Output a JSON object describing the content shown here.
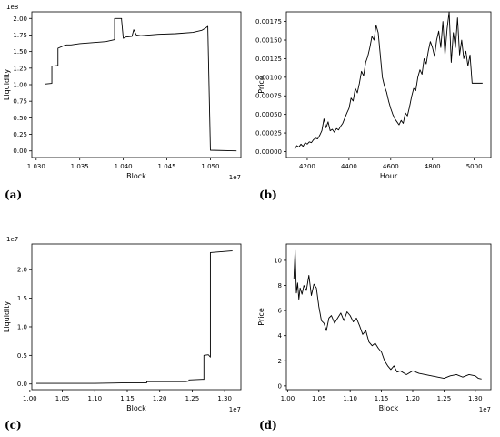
{
  "panels": {
    "a": "(a)",
    "b": "(b)",
    "c": "(c)",
    "d": "(d)"
  },
  "chart_data": [
    {
      "id": "a",
      "type": "line",
      "xlabel": "Block",
      "ylabel": "Liquidity",
      "x_offset_label": "1e7",
      "y_offset_label": "1e8",
      "xlim": [
        1.0295,
        1.0535
      ],
      "ylim": [
        -0.1,
        2.1
      ],
      "x_ticks": [
        1.03,
        1.035,
        1.04,
        1.045,
        1.05
      ],
      "x_tick_labels": [
        "1.030",
        "1.035",
        "1.040",
        "1.045",
        "1.050"
      ],
      "y_ticks": [
        0.0,
        0.25,
        0.5,
        0.75,
        1.0,
        1.25,
        1.5,
        1.75,
        2.0
      ],
      "y_tick_labels": [
        "0.00",
        "0.25",
        "0.50",
        "0.75",
        "1.00",
        "1.25",
        "1.50",
        "1.75",
        "2.00"
      ],
      "series": [
        {
          "x": [
            1.031,
            1.0318,
            1.0318,
            1.0325,
            1.0325,
            1.0332,
            1.0335,
            1.034,
            1.035,
            1.036,
            1.038,
            1.039,
            1.039,
            1.0398,
            1.0398,
            1.04,
            1.0403,
            1.041,
            1.0412,
            1.0415,
            1.042,
            1.044,
            1.046,
            1.048,
            1.049,
            1.0495,
            1.0497,
            1.05,
            1.053
          ],
          "y": [
            1.01,
            1.02,
            1.28,
            1.29,
            1.55,
            1.59,
            1.6,
            1.6,
            1.62,
            1.63,
            1.65,
            1.68,
            2.0,
            2.0,
            1.98,
            1.7,
            1.72,
            1.73,
            1.83,
            1.75,
            1.74,
            1.76,
            1.77,
            1.79,
            1.82,
            1.86,
            1.88,
            0.01,
            0.0
          ]
        }
      ]
    },
    {
      "id": "b",
      "type": "line",
      "xlabel": "Hour",
      "ylabel": "Price",
      "xlim": [
        4100,
        5080
      ],
      "ylim": [
        -8e-05,
        0.00188
      ],
      "x_ticks": [
        4200,
        4400,
        4600,
        4800,
        5000
      ],
      "x_tick_labels": [
        "4200",
        "4400",
        "4600",
        "4800",
        "5000"
      ],
      "y_ticks": [
        0.0,
        0.00025,
        0.0005,
        0.00075,
        0.001,
        0.00125,
        0.0015,
        0.00175
      ],
      "y_tick_labels": [
        "0.00000",
        "0.00025",
        "0.00050",
        "0.00075",
        "0.00100",
        "0.00125",
        "0.00150",
        "0.00175"
      ],
      "series": [
        {
          "x": [
            4140,
            4150,
            4160,
            4170,
            4180,
            4190,
            4200,
            4210,
            4220,
            4230,
            4240,
            4250,
            4260,
            4270,
            4280,
            4290,
            4300,
            4310,
            4320,
            4330,
            4340,
            4350,
            4360,
            4370,
            4380,
            4390,
            4400,
            4410,
            4420,
            4430,
            4440,
            4450,
            4460,
            4470,
            4480,
            4490,
            4500,
            4510,
            4520,
            4530,
            4540,
            4550,
            4560,
            4570,
            4580,
            4590,
            4600,
            4610,
            4620,
            4630,
            4640,
            4650,
            4660,
            4670,
            4680,
            4690,
            4700,
            4710,
            4720,
            4730,
            4740,
            4750,
            4760,
            4770,
            4780,
            4790,
            4800,
            4810,
            4820,
            4830,
            4840,
            4850,
            4860,
            4870,
            4880,
            4890,
            4900,
            4910,
            4920,
            4930,
            4940,
            4950,
            4960,
            4970,
            4980,
            4990,
            5000,
            5010,
            5020,
            5030,
            5040
          ],
          "y": [
            3e-05,
            8e-05,
            6e-05,
            0.0001,
            7e-05,
            0.00012,
            0.0001,
            0.00013,
            0.00012,
            0.00016,
            0.00018,
            0.00017,
            0.00022,
            0.00028,
            0.00044,
            0.00032,
            0.0004,
            0.00028,
            0.0003,
            0.00026,
            0.00031,
            0.00029,
            0.00034,
            0.00038,
            0.00045,
            0.00052,
            0.00058,
            0.00072,
            0.00068,
            0.00085,
            0.00079,
            0.00092,
            0.00108,
            0.00102,
            0.0012,
            0.00128,
            0.0014,
            0.00155,
            0.0015,
            0.0017,
            0.0016,
            0.0013,
            0.001,
            0.00088,
            0.0008,
            0.00068,
            0.00058,
            0.0005,
            0.00044,
            0.0004,
            0.00036,
            0.00042,
            0.00038,
            0.00052,
            0.00048,
            0.0006,
            0.00074,
            0.00085,
            0.00082,
            0.001,
            0.0011,
            0.00104,
            0.00125,
            0.00118,
            0.00135,
            0.00148,
            0.0014,
            0.00128,
            0.0015,
            0.00162,
            0.0014,
            0.00175,
            0.0013,
            0.00165,
            0.00188,
            0.0012,
            0.0016,
            0.0014,
            0.0018,
            0.0013,
            0.0015,
            0.00125,
            0.00135,
            0.00115,
            0.0013,
            0.00092,
            0.00092,
            0.00092,
            0.00092,
            0.00092,
            0.00092
          ]
        }
      ]
    },
    {
      "id": "c",
      "type": "line",
      "xlabel": "Block",
      "ylabel": "Liquidity",
      "x_offset_label": "1e7",
      "y_offset_label": "1e7",
      "xlim": [
        1.003,
        1.325
      ],
      "ylim": [
        -0.1,
        2.45
      ],
      "x_ticks": [
        1.0,
        1.05,
        1.1,
        1.15,
        1.2,
        1.25,
        1.3
      ],
      "x_tick_labels": [
        "1.00",
        "1.05",
        "1.10",
        "1.15",
        "1.20",
        "1.25",
        "1.30"
      ],
      "y_ticks": [
        0.0,
        0.5,
        1.0,
        1.5,
        2.0
      ],
      "y_tick_labels": [
        "0.0",
        "0.5",
        "1.0",
        "1.5",
        "2.0"
      ],
      "series": [
        {
          "x": [
            1.01,
            1.05,
            1.1,
            1.15,
            1.18,
            1.18,
            1.2,
            1.24,
            1.245,
            1.245,
            1.265,
            1.268,
            1.268,
            1.275,
            1.278,
            1.278,
            1.3,
            1.312
          ],
          "y": [
            0.01,
            0.01,
            0.01,
            0.02,
            0.02,
            0.04,
            0.04,
            0.04,
            0.05,
            0.07,
            0.08,
            0.08,
            0.5,
            0.51,
            0.47,
            2.3,
            2.32,
            2.33
          ]
        }
      ]
    },
    {
      "id": "d",
      "type": "line",
      "xlabel": "Block",
      "ylabel": "Price",
      "x_offset_label": "1e7",
      "xlim": [
        0.998,
        1.325
      ],
      "ylim": [
        -0.3,
        11.3
      ],
      "x_ticks": [
        1.0,
        1.05,
        1.1,
        1.15,
        1.2,
        1.25,
        1.3
      ],
      "x_tick_labels": [
        "1.00",
        "1.05",
        "1.10",
        "1.15",
        "1.20",
        "1.25",
        "1.30"
      ],
      "y_ticks": [
        0,
        2,
        4,
        6,
        8,
        10
      ],
      "y_tick_labels": [
        "0",
        "2",
        "4",
        "6",
        "8",
        "10"
      ],
      "series": [
        {
          "x": [
            1.01,
            1.012,
            1.014,
            1.016,
            1.018,
            1.02,
            1.023,
            1.026,
            1.03,
            1.034,
            1.038,
            1.042,
            1.046,
            1.05,
            1.054,
            1.058,
            1.062,
            1.066,
            1.07,
            1.075,
            1.08,
            1.085,
            1.09,
            1.095,
            1.1,
            1.105,
            1.11,
            1.115,
            1.12,
            1.125,
            1.13,
            1.135,
            1.14,
            1.145,
            1.15,
            1.155,
            1.16,
            1.165,
            1.17,
            1.175,
            1.18,
            1.19,
            1.2,
            1.21,
            1.22,
            1.23,
            1.24,
            1.25,
            1.26,
            1.27,
            1.28,
            1.29,
            1.3,
            1.305,
            1.31
          ],
          "y": [
            8.5,
            10.8,
            7.4,
            8.2,
            6.9,
            7.8,
            7.3,
            8.0,
            7.6,
            8.8,
            7.2,
            8.1,
            7.8,
            6.3,
            5.2,
            5.0,
            4.4,
            5.4,
            5.6,
            5.0,
            5.4,
            5.8,
            5.2,
            5.9,
            5.6,
            5.1,
            5.4,
            4.8,
            4.1,
            4.4,
            3.5,
            3.2,
            3.4,
            3.0,
            2.7,
            2.0,
            1.6,
            1.3,
            1.6,
            1.1,
            1.2,
            0.9,
            1.2,
            1.0,
            0.9,
            0.8,
            0.7,
            0.6,
            0.8,
            0.9,
            0.7,
            0.9,
            0.8,
            0.6,
            0.55
          ]
        }
      ]
    }
  ]
}
